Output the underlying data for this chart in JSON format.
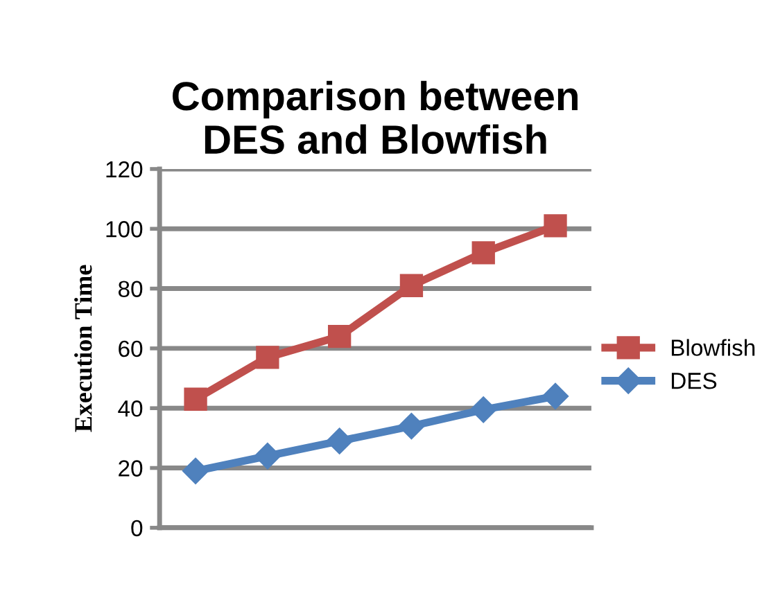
{
  "chart_data": {
    "type": "line",
    "title": "Comparison between\nDES and Blowfish",
    "ylabel": "Execution Time",
    "categories": [
      null,
      null,
      null,
      null,
      null,
      null
    ],
    "series": [
      {
        "name": "Blowfish",
        "color": "#c0504d",
        "marker": "square",
        "values": [
          43,
          57,
          64,
          81,
          92,
          101
        ]
      },
      {
        "name": "DES",
        "color": "#4f81bd",
        "marker": "diamond",
        "values": [
          19,
          24,
          29,
          34,
          39.5,
          44
        ]
      }
    ],
    "ylim": [
      0,
      120
    ],
    "yticks": [
      0,
      20,
      40,
      60,
      80,
      100,
      120
    ],
    "grid": "y",
    "legend": "right",
    "line_style": "solid"
  }
}
